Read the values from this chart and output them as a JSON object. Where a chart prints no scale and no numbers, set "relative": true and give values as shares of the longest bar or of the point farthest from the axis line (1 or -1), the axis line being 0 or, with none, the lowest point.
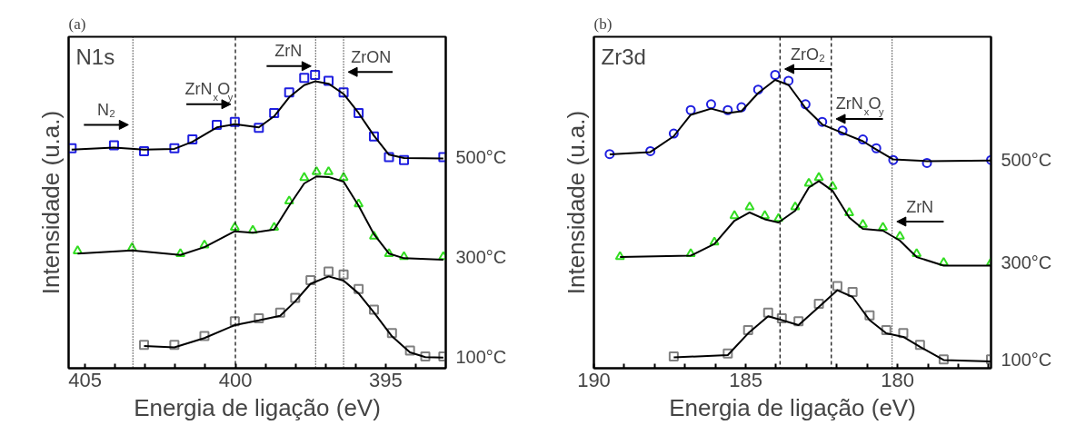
{
  "chart_data": [
    {
      "type": "line",
      "title": "(a)",
      "xlabel": "Energia de ligação (eV)",
      "ylabel": "Intensidade (u.a.)",
      "relative": true,
      "grid": false,
      "xlim": [
        405.55,
        393.0
      ],
      "xticks": [
        405,
        {
          "value": 404,
          "label": null
        },
        {
          "value": 403,
          "label": null
        },
        {
          "value": 402,
          "label": null
        },
        {
          "value": 401,
          "label": null
        },
        400,
        {
          "value": 399,
          "label": null
        },
        {
          "value": 398,
          "label": null
        },
        {
          "value": 397,
          "label": null
        },
        {
          "value": 396,
          "label": null
        },
        395,
        {
          "value": 394,
          "label": null
        }
      ],
      "annotations": [
        "N1s",
        {
          "text": "N₂",
          "x": 403.41,
          "y": 0.83
        },
        {
          "text": "ZrN$_{x}$O$_{y}$",
          "x": 400.0,
          "y": 0.9
        },
        {
          "text": "ZrN",
          "x": 397.33,
          "y": 1.03
        },
        {
          "text": "ZrON",
          "x": 396.4,
          "y": 1.01
        }
      ],
      "ref_lines": [
        {
          "axis": "x",
          "value": 403.41,
          "line_style": "dotted"
        },
        {
          "axis": "x",
          "value": 400.0,
          "line_style": "dashed"
        },
        {
          "axis": "x",
          "value": 397.33,
          "line_style": "dotted"
        },
        {
          "axis": "x",
          "value": 396.4,
          "line_style": "dotted"
        }
      ],
      "series": [
        {
          "type": "scatter",
          "marker": "square",
          "name": "500°C",
          "color": "#1f1fe0",
          "x": [
            405.45,
            404.04,
            403.04,
            402.03,
            401.43,
            400.62,
            400.02,
            399.22,
            398.71,
            398.21,
            397.71,
            397.35,
            396.9,
            396.4,
            395.9,
            395.39,
            394.89,
            394.39,
            393.08
          ],
          "values": [
            0.75,
            0.76,
            0.74,
            0.75,
            0.78,
            0.83,
            0.84,
            0.82,
            0.87,
            0.94,
            0.99,
            1.0,
            0.98,
            0.94,
            0.87,
            0.79,
            0.72,
            0.71,
            0.72
          ]
        },
        {
          "type": "line",
          "color": "#000000",
          "x": [
            405.45,
            404.04,
            403.04,
            402.03,
            401.43,
            400.62,
            400.02,
            399.22,
            398.71,
            398.21,
            397.71,
            397.35,
            396.9,
            396.4,
            395.9,
            395.39,
            394.89,
            394.39,
            393.08
          ],
          "values": [
            0.745,
            0.752,
            0.745,
            0.748,
            0.772,
            0.821,
            0.832,
            0.821,
            0.859,
            0.924,
            0.965,
            0.978,
            0.97,
            0.935,
            0.87,
            0.793,
            0.728,
            0.717,
            0.715
          ]
        },
        {
          "type": "scatter",
          "marker": "triangle",
          "name": "300°C",
          "color": "#33dd22",
          "x": [
            405.25,
            403.44,
            401.83,
            401.03,
            400.02,
            399.42,
            398.71,
            398.21,
            397.71,
            397.3,
            396.9,
            396.4,
            395.9,
            395.39,
            394.89,
            394.39,
            393.08
          ],
          "values": [
            0.4,
            0.41,
            0.39,
            0.42,
            0.48,
            0.47,
            0.48,
            0.57,
            0.65,
            0.67,
            0.67,
            0.65,
            0.56,
            0.45,
            0.39,
            0.38,
            0.38
          ]
        },
        {
          "type": "line",
          "color": "#000000",
          "x": [
            405.25,
            403.44,
            401.83,
            401.03,
            400.02,
            399.42,
            398.71,
            398.21,
            397.71,
            397.3,
            396.9,
            396.4,
            395.9,
            395.39,
            394.89,
            394.39,
            393.08
          ],
          "values": [
            0.391,
            0.402,
            0.386,
            0.413,
            0.467,
            0.462,
            0.473,
            0.554,
            0.63,
            0.654,
            0.652,
            0.636,
            0.554,
            0.457,
            0.391,
            0.375,
            0.37
          ]
        },
        {
          "type": "scatter",
          "marker": "square",
          "name": "100°C",
          "color": "#808080",
          "x": [
            403.04,
            402.03,
            401.03,
            400.02,
            399.22,
            398.51,
            398.01,
            397.5,
            396.9,
            396.4,
            395.9,
            395.39,
            394.79,
            394.19,
            393.68,
            393.08
          ],
          "values": [
            0.08,
            0.08,
            0.11,
            0.16,
            0.17,
            0.19,
            0.24,
            0.3,
            0.33,
            0.32,
            0.27,
            0.2,
            0.12,
            0.06,
            0.04,
            0.04
          ]
        },
        {
          "type": "line",
          "color": "#000000",
          "x": [
            403.04,
            402.03,
            401.03,
            400.02,
            399.22,
            398.51,
            398.01,
            397.5,
            396.9,
            396.4,
            395.9,
            395.39,
            394.79,
            394.19,
            393.68,
            393.08
          ],
          "values": [
            0.076,
            0.071,
            0.103,
            0.147,
            0.163,
            0.179,
            0.228,
            0.288,
            0.313,
            0.299,
            0.255,
            0.19,
            0.109,
            0.054,
            0.038,
            0.036
          ]
        }
      ]
    },
    {
      "type": "line",
      "title": "(b)",
      "xlabel": "Energia de ligação (eV)",
      "ylabel": "Intensidade (u.a.)",
      "relative": true,
      "grid": false,
      "xlim": [
        190,
        176.92
      ],
      "xticks": [
        190,
        {
          "value": 189,
          "label": null
        },
        {
          "value": 188,
          "label": null
        },
        {
          "value": 187,
          "label": null
        },
        {
          "value": 186,
          "label": null
        },
        185,
        {
          "value": 184,
          "label": null
        },
        {
          "value": 183,
          "label": null
        },
        {
          "value": 182,
          "label": null
        },
        {
          "value": 181,
          "label": null
        },
        180,
        {
          "value": 179,
          "label": null
        },
        {
          "value": 178,
          "label": null
        },
        {
          "value": 177,
          "label": null
        }
      ],
      "annotations": [
        "Zr3d",
        {
          "text": "ZrO₂",
          "x": 183.87,
          "y": 1.02
        },
        {
          "text": "ZrN$_{x}$O$_{y}$",
          "x": 182.18,
          "y": 0.85
        },
        {
          "text": "ZrN",
          "x": 180.18,
          "y": 0.5
        }
      ],
      "ref_lines": [
        {
          "axis": "x",
          "value": 183.87,
          "line_style": "dashed"
        },
        {
          "axis": "x",
          "value": 182.18,
          "line_style": "dashed"
        },
        {
          "axis": "x",
          "value": 180.18,
          "line_style": "dotted"
        }
      ],
      "series": [
        {
          "type": "scatter",
          "marker": "circle",
          "name": "500°C",
          "color": "#1f1fe0",
          "x": [
            189.48,
            188.14,
            187.37,
            186.81,
            186.14,
            185.59,
            185.14,
            184.59,
            184.03,
            183.59,
            183.03,
            182.48,
            181.81,
            181.14,
            180.7,
            180.14,
            179.03,
            176.92
          ],
          "values": [
            0.73,
            0.74,
            0.8,
            0.88,
            0.9,
            0.88,
            0.89,
            0.95,
            1.0,
            0.98,
            0.9,
            0.84,
            0.81,
            0.78,
            0.75,
            0.71,
            0.7,
            0.71
          ]
        },
        {
          "type": "line",
          "color": "#000000",
          "x": [
            189.48,
            188.14,
            187.37,
            186.81,
            186.14,
            185.59,
            185.14,
            184.59,
            184.03,
            183.59,
            183.03,
            182.48,
            181.81,
            181.14,
            180.7,
            180.14,
            179.03,
            176.92
          ],
          "values": [
            0.729,
            0.737,
            0.791,
            0.864,
            0.885,
            0.87,
            0.876,
            0.938,
            0.983,
            0.966,
            0.887,
            0.831,
            0.802,
            0.774,
            0.746,
            0.712,
            0.706,
            0.708
          ]
        },
        {
          "type": "scatter",
          "marker": "triangle",
          "name": "300°C",
          "color": "#33dd22",
          "x": [
            189.14,
            186.81,
            186.03,
            185.37,
            184.87,
            184.37,
            183.92,
            183.37,
            182.92,
            182.59,
            182.14,
            181.59,
            181.14,
            180.48,
            179.92,
            179.37,
            178.48,
            176.92
          ],
          "values": [
            0.38,
            0.39,
            0.43,
            0.52,
            0.55,
            0.52,
            0.51,
            0.55,
            0.63,
            0.65,
            0.62,
            0.53,
            0.49,
            0.48,
            0.45,
            0.39,
            0.36,
            0.36
          ]
        },
        {
          "type": "line",
          "color": "#000000",
          "x": [
            189.14,
            186.81,
            186.03,
            185.37,
            184.87,
            184.37,
            183.92,
            183.37,
            182.92,
            182.59,
            182.14,
            181.59,
            181.14,
            180.48,
            179.92,
            179.37,
            178.48,
            176.92
          ],
          "values": [
            0.379,
            0.384,
            0.424,
            0.503,
            0.531,
            0.508,
            0.497,
            0.537,
            0.616,
            0.638,
            0.605,
            0.514,
            0.475,
            0.469,
            0.435,
            0.379,
            0.35,
            0.35
          ]
        },
        {
          "type": "scatter",
          "marker": "square",
          "name": "100°C",
          "color": "#808080",
          "x": [
            187.37,
            185.59,
            184.92,
            184.26,
            183.81,
            183.26,
            182.59,
            181.98,
            181.48,
            180.92,
            180.37,
            179.81,
            179.26,
            178.48,
            176.92
          ],
          "values": [
            0.04,
            0.05,
            0.13,
            0.19,
            0.17,
            0.16,
            0.22,
            0.28,
            0.26,
            0.18,
            0.13,
            0.12,
            0.08,
            0.03,
            0.03
          ]
        },
        {
          "type": "line",
          "color": "#000000",
          "x": [
            187.37,
            185.59,
            184.92,
            184.26,
            183.81,
            183.26,
            182.59,
            181.98,
            181.48,
            180.92,
            180.37,
            179.81,
            179.26,
            178.48,
            176.92
          ],
          "values": [
            0.037,
            0.045,
            0.119,
            0.177,
            0.164,
            0.147,
            0.209,
            0.266,
            0.243,
            0.164,
            0.119,
            0.107,
            0.073,
            0.028,
            0.023
          ]
        }
      ]
    }
  ]
}
